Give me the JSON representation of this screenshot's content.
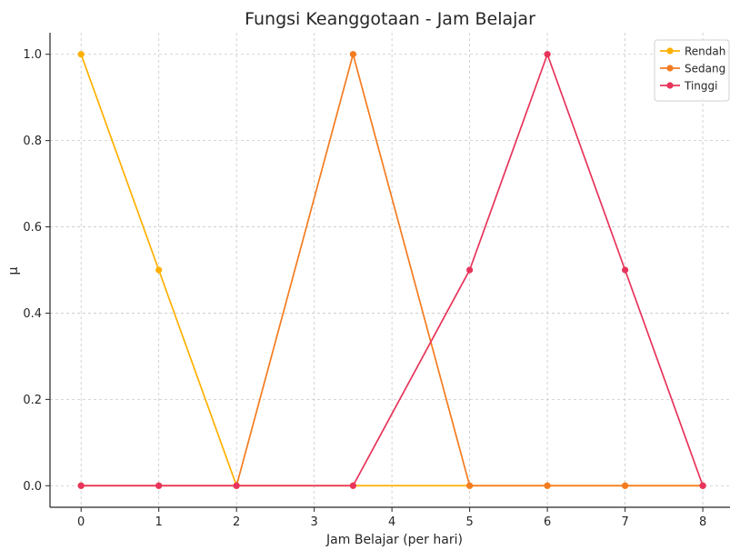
{
  "chart_data": {
    "type": "line",
    "title": "Fungsi Keanggotaan - Jam Belajar",
    "xlabel": "Jam Belajar (per hari)",
    "ylabel": "μ",
    "x": [
      0,
      1,
      2,
      3.5,
      5,
      6,
      7,
      8
    ],
    "xlim": [
      -0.4,
      8.35
    ],
    "ylim": [
      -0.05,
      1.05
    ],
    "xticks": [
      "0",
      "1",
      "2",
      "3",
      "4",
      "5",
      "6",
      "7",
      "8"
    ],
    "yticks": [
      "0.0",
      "0.2",
      "0.4",
      "0.6",
      "0.8",
      "1.0"
    ],
    "grid": true,
    "legend_position": "top-right",
    "series": [
      {
        "name": "Rendah",
        "color": "#FFB000",
        "values": [
          1.0,
          0.5,
          0.0,
          0.0,
          0.0,
          0.0,
          0.0,
          0.0
        ]
      },
      {
        "name": "Sedang",
        "color": "#F47C20",
        "values": [
          0.0,
          0.0,
          0.0,
          1.0,
          0.0,
          0.0,
          0.0,
          0.0
        ]
      },
      {
        "name": "Tinggi",
        "color": "#E8345A",
        "values": [
          0.0,
          0.0,
          0.0,
          0.0,
          0.5,
          1.0,
          0.5,
          0.0
        ]
      }
    ]
  }
}
